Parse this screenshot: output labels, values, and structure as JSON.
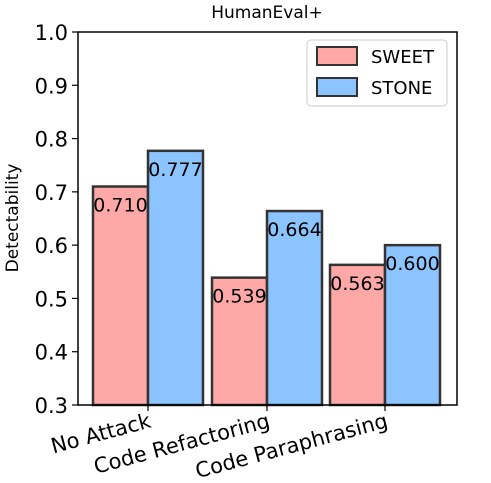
{
  "chart_data": {
    "type": "bar",
    "title": "HumanEval+",
    "xlabel": "",
    "ylabel": "Detectability",
    "categories": [
      "No Attack",
      "Code Refactoring",
      "Code Paraphrasing"
    ],
    "series": [
      {
        "name": "SWEET",
        "values": [
          0.71,
          0.539,
          0.563
        ],
        "labels": [
          "0.710",
          "0.539",
          "0.563"
        ],
        "color": "#ffa8a8"
      },
      {
        "name": "STONE",
        "values": [
          0.777,
          0.664,
          0.6
        ],
        "labels": [
          "0.777",
          "0.664",
          "0.600"
        ],
        "color": "#8cc4ff"
      }
    ],
    "ylim": [
      0.3,
      1.0
    ],
    "yticks": [
      "0.3",
      "0.4",
      "0.5",
      "0.6",
      "0.7",
      "0.8",
      "0.9",
      "1.0"
    ],
    "xtick_rotation": "rotated ~15 degrees",
    "legend_position": "top-right",
    "grid": false
  }
}
